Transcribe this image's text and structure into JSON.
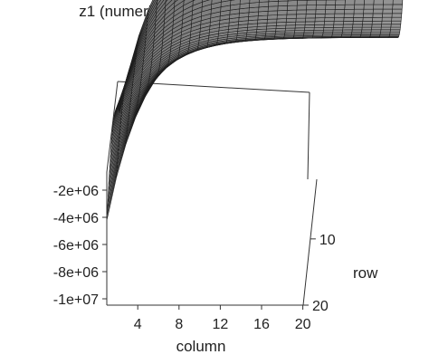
{
  "chart_data": {
    "type": "surface",
    "title": "z1 (numerical values) versus C1 and L1",
    "xlabel": "column",
    "ylabel": "row",
    "zlabel": "",
    "x_ticks": [
      4,
      8,
      12,
      16,
      20
    ],
    "y_ticks": [
      10,
      20
    ],
    "z_ticks": [
      -2000000,
      -4000000,
      -6000000,
      -8000000,
      -10000000
    ],
    "x_tick_labels": [
      "4",
      "8",
      "12",
      "16",
      "20"
    ],
    "y_tick_labels": [
      "10",
      "20"
    ],
    "z_tick_labels": [
      "-2e+06",
      "-4e+06",
      "-6e+06",
      "-8e+06",
      "-1e+07"
    ],
    "xlim": [
      1,
      20
    ],
    "ylim": [
      1,
      20
    ],
    "zlim": [
      -10000000,
      0
    ],
    "grid": false,
    "surface_color": "#9a9a9a",
    "mesh_color": "#1e1e1e"
  }
}
